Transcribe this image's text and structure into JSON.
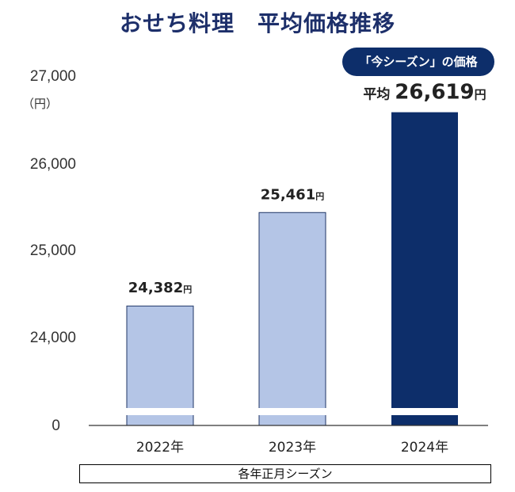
{
  "title": "おせち料理　平均価格推移",
  "badge": "「今シーズン」の価格",
  "footer": "各年正月シーズン",
  "colors": {
    "title": "#1d2f6a",
    "bar_light": "#b4c5e6",
    "bar_dark": "#0d2e6a",
    "axis": "#333333"
  },
  "chart_data": {
    "type": "bar",
    "title": "おせち料理　平均価格推移",
    "categories": [
      "2022年",
      "2023年",
      "2024年"
    ],
    "values": [
      24382,
      25461,
      26619
    ],
    "value_labels": [
      {
        "number": "24,382",
        "unit": "円"
      },
      {
        "number": "25,461",
        "unit": "円"
      },
      {
        "prefix": "平均",
        "number": "26,619",
        "unit": "円"
      }
    ],
    "highlighted_index": 2,
    "y_ticks": [
      "27,000",
      "26,000",
      "25,000",
      "24,000",
      "0"
    ],
    "y_unit": "（円）",
    "ylim": [
      23500,
      27000
    ],
    "axis_break": true,
    "xlabel": "各年正月シーズン"
  }
}
